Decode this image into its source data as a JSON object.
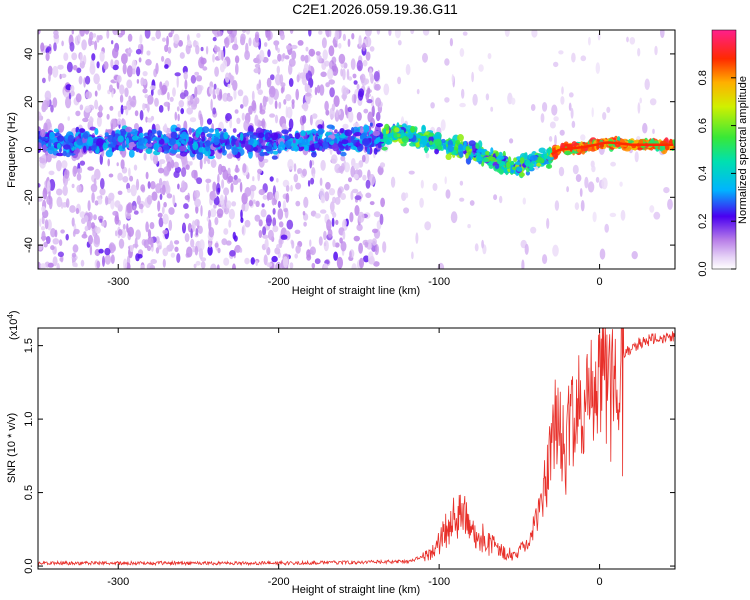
{
  "title": "C2E1.2026.059.19.36.G11",
  "chart_data": [
    {
      "type": "heatmap",
      "name": "spectrogram",
      "xlabel": "Height of straight line (km)",
      "ylabel": "Frequency (Hz)",
      "xlim": [
        -350,
        47
      ],
      "ylim": [
        -50,
        50
      ],
      "xticks": [
        -300,
        -200,
        -100,
        0
      ],
      "yticks": [
        -40,
        -20,
        0,
        20,
        40
      ],
      "colorbar": {
        "label": "Normalized spectral amplitude",
        "range": [
          0,
          1
        ],
        "ticks": [
          "0.0",
          "0.2",
          "0.4",
          "0.6",
          "0.8"
        ],
        "tick_values": [
          0,
          0.2,
          0.4,
          0.6,
          0.8
        ]
      },
      "tone_track": [
        {
          "x": -350,
          "f": 3
        },
        {
          "x": -240,
          "f": 3
        },
        {
          "x": -140,
          "f": 4
        },
        {
          "x": -125,
          "f": 7
        },
        {
          "x": -110,
          "f": 4
        },
        {
          "x": -95,
          "f": 2
        },
        {
          "x": -80,
          "f": -1
        },
        {
          "x": -70,
          "f": -3
        },
        {
          "x": -60,
          "f": -6
        },
        {
          "x": -52,
          "f": -8
        },
        {
          "x": -45,
          "f": -5
        },
        {
          "x": -35,
          "f": -4
        },
        {
          "x": -25,
          "f": 0
        },
        {
          "x": -10,
          "f": 1
        },
        {
          "x": 5,
          "f": 3
        },
        {
          "x": 20,
          "f": 2
        },
        {
          "x": 47,
          "f": 2
        }
      ],
      "noise_cutoff_x": -135
    },
    {
      "type": "line",
      "name": "snr",
      "xlabel": "Height of straight line (km)",
      "ylabel": "SNR (10 * v/v)",
      "scale_label": "(x10",
      "scale_exp": "4",
      "scale_close": ")",
      "xlim": [
        -350,
        47
      ],
      "ylim": [
        -0.02,
        1.62
      ],
      "xticks": [
        -300,
        -200,
        -100,
        0
      ],
      "yticks": [
        0.0,
        0.5,
        1.0,
        1.5
      ],
      "ytick_labels": [
        "0.0",
        "0.5",
        "1.0",
        "1.5"
      ],
      "series": [
        {
          "name": "SNR",
          "color": "#e8302a",
          "envelope": [
            {
              "x": -350,
              "y": 0.02
            },
            {
              "x": -200,
              "y": 0.02
            },
            {
              "x": -120,
              "y": 0.03
            },
            {
              "x": -105,
              "y": 0.08
            },
            {
              "x": -95,
              "y": 0.25
            },
            {
              "x": -90,
              "y": 0.35
            },
            {
              "x": -80,
              "y": 0.28
            },
            {
              "x": -70,
              "y": 0.15
            },
            {
              "x": -55,
              "y": 0.08
            },
            {
              "x": -45,
              "y": 0.12
            },
            {
              "x": -40,
              "y": 0.3
            },
            {
              "x": -33,
              "y": 0.6
            },
            {
              "x": -28,
              "y": 0.95
            },
            {
              "x": -22,
              "y": 0.85
            },
            {
              "x": -15,
              "y": 1.05
            },
            {
              "x": -8,
              "y": 1.1
            },
            {
              "x": 0,
              "y": 1.25
            },
            {
              "x": 8,
              "y": 1.3
            },
            {
              "x": 15,
              "y": 1.45
            },
            {
              "x": 25,
              "y": 1.52
            },
            {
              "x": 35,
              "y": 1.55
            },
            {
              "x": 47,
              "y": 1.56
            }
          ]
        }
      ]
    }
  ]
}
